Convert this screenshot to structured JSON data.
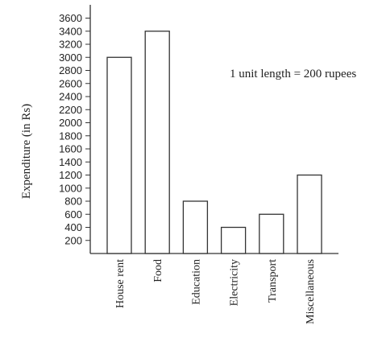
{
  "chart_data": {
    "type": "bar",
    "title": "",
    "xlabel": "",
    "ylabel": "Expenditure (in Rs)",
    "categories": [
      "House rent",
      "Food",
      "Education",
      "Electricity",
      "Transport",
      "Miscellaneous"
    ],
    "values": [
      3000,
      3400,
      800,
      400,
      600,
      1200
    ],
    "yticks": [
      200,
      400,
      600,
      800,
      1000,
      1200,
      1400,
      1600,
      1800,
      2000,
      2200,
      2400,
      2600,
      2800,
      3000,
      3200,
      3400,
      3600
    ],
    "ylim": [
      0,
      3600
    ],
    "grid": false,
    "annotation": "1 unit length = 200 rupees",
    "colors": {
      "bar_fill": "#ffffff",
      "bar_stroke": "#333333"
    }
  }
}
